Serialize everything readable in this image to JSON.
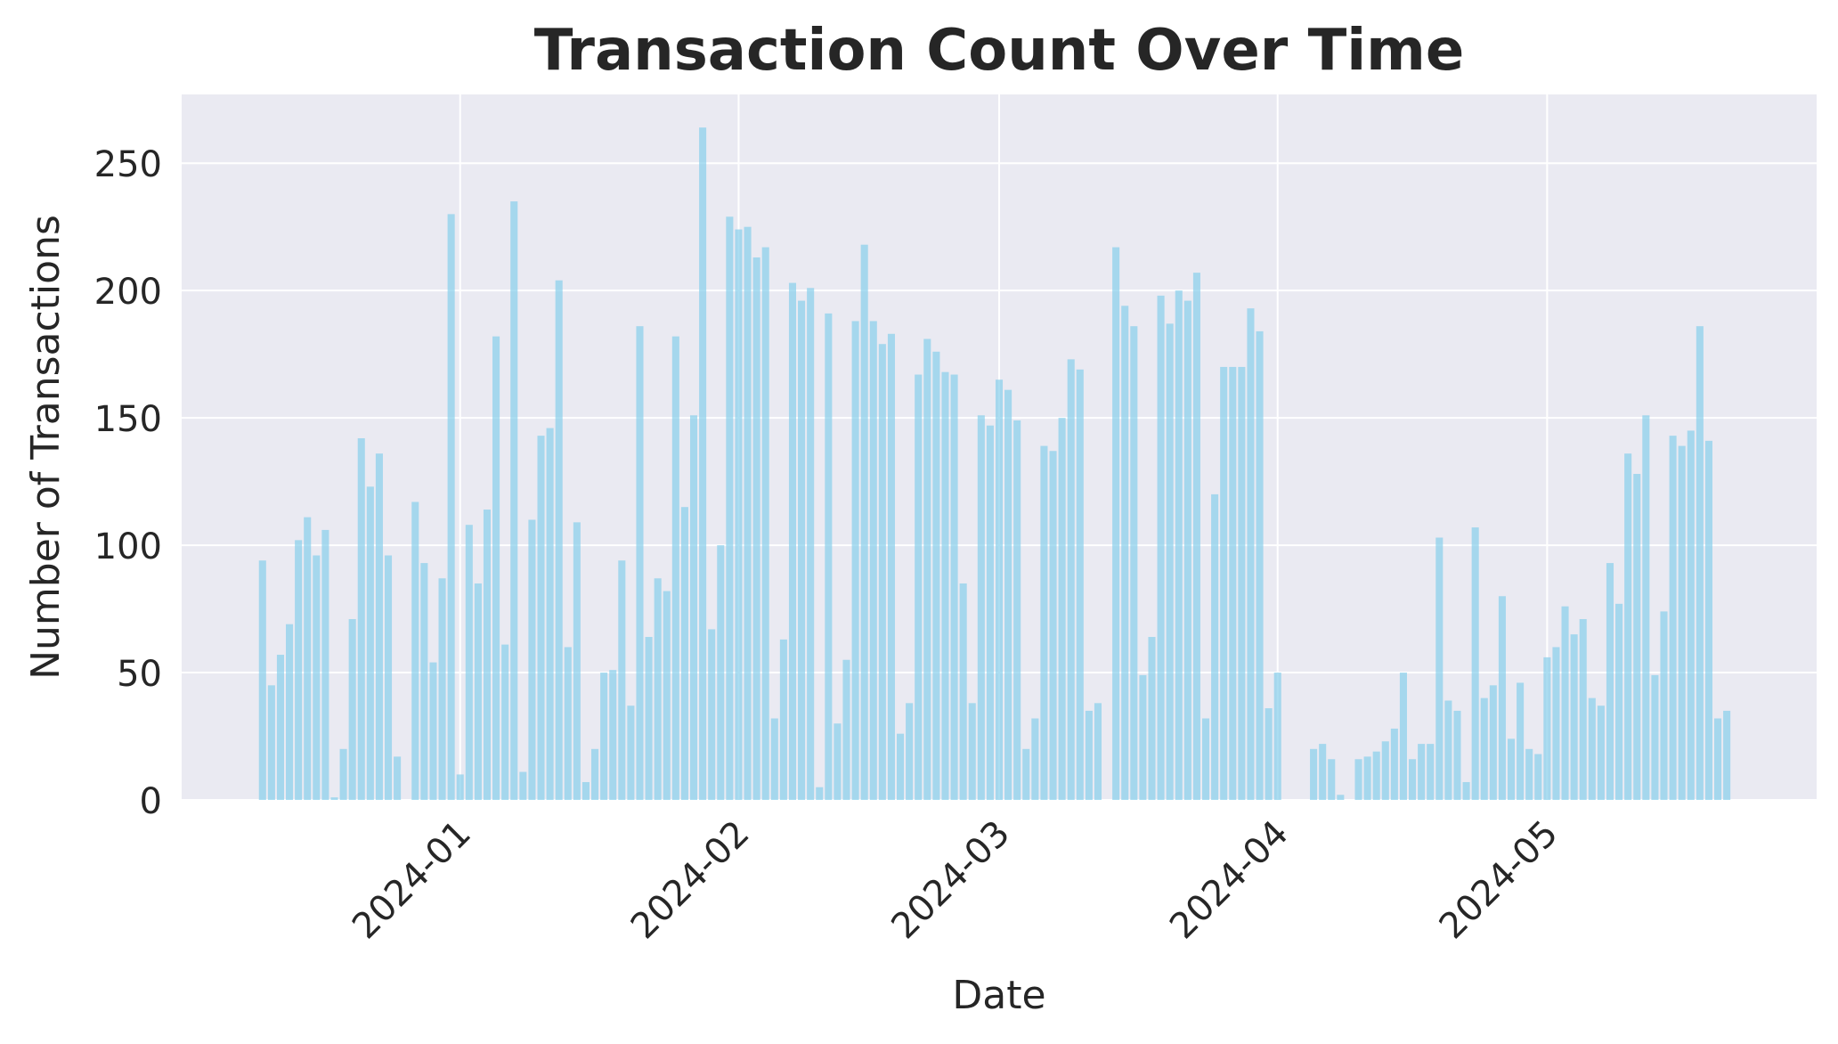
{
  "chart_data": {
    "type": "bar",
    "title": "Transaction Count Over Time",
    "xlabel": "Date",
    "ylabel": "Number of Transactions",
    "ylim": [
      0,
      277
    ],
    "xlim": [
      "2023-12-01",
      "2024-05-31"
    ],
    "yticks": [
      0,
      50,
      100,
      150,
      200,
      250
    ],
    "xticks": [
      {
        "label": "2024-01",
        "date": "2024-01-01"
      },
      {
        "label": "2024-02",
        "date": "2024-02-01"
      },
      {
        "label": "2024-03",
        "date": "2024-03-01"
      },
      {
        "label": "2024-04",
        "date": "2024-04-01"
      },
      {
        "label": "2024-05",
        "date": "2024-05-01"
      }
    ],
    "grid": true,
    "bar_color": "#87ceeb",
    "background_color": "#eaeaf2",
    "start_date": "2023-12-10",
    "values": [
      94,
      45,
      57,
      69,
      102,
      111,
      96,
      106,
      1,
      20,
      71,
      142,
      123,
      136,
      96,
      17,
      0,
      117,
      93,
      54,
      87,
      230,
      10,
      108,
      85,
      114,
      182,
      61,
      235,
      11,
      110,
      143,
      146,
      204,
      60,
      109,
      7,
      20,
      50,
      51,
      94,
      37,
      186,
      64,
      87,
      82,
      182,
      115,
      151,
      264,
      67,
      100,
      229,
      224,
      225,
      213,
      217,
      32,
      63,
      203,
      196,
      201,
      5,
      191,
      30,
      55,
      188,
      218,
      188,
      179,
      183,
      26,
      38,
      167,
      181,
      176,
      168,
      167,
      85,
      38,
      151,
      147,
      165,
      161,
      149,
      20,
      32,
      139,
      137,
      150,
      173,
      169,
      35,
      38,
      0,
      217,
      194,
      186,
      49,
      64,
      198,
      187,
      200,
      196,
      207,
      32,
      120,
      170,
      170,
      170,
      193,
      184,
      36,
      50,
      0,
      0,
      0,
      20,
      22,
      16,
      2,
      0,
      16,
      17,
      19,
      23,
      28,
      50,
      16,
      22,
      22,
      103,
      39,
      35,
      7,
      107,
      40,
      45,
      80,
      24,
      46,
      20,
      18,
      56,
      60,
      76,
      65,
      71,
      40,
      37,
      93,
      77,
      136,
      128,
      151,
      49,
      74,
      143,
      139,
      145,
      186,
      141,
      32,
      35
    ]
  }
}
